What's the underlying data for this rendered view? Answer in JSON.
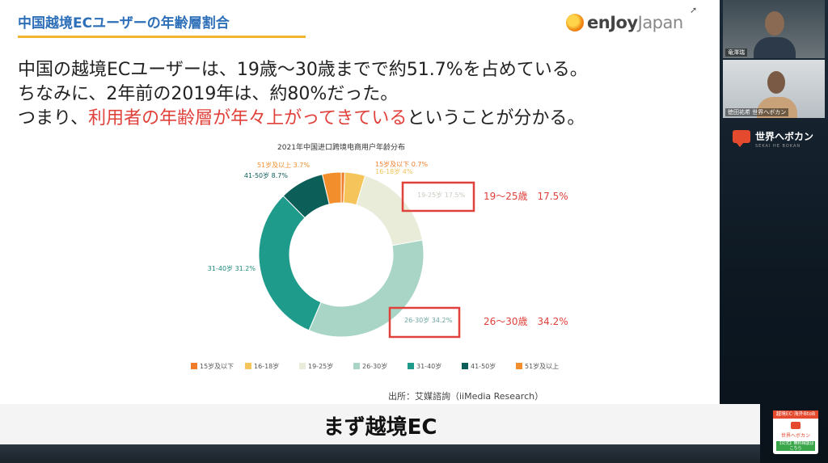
{
  "slide": {
    "title": "中国越境ECユーザーの年齢層割合",
    "logo": {
      "brand_en": "enJoy",
      "brand_jp": "Japan"
    },
    "line1": "中国の越境ECユーザーは、19歳～30歳までで約51.7%を占めている。",
    "line2": "ちなみに、2年前の2019年は、約80%だった。",
    "line3_pre": "つまり、",
    "line3_red": "利用者の年齢層が年々上がってきている",
    "line3_post": "ということが分かる。",
    "source": "出所：艾媒諮詢（iiMedia Research）"
  },
  "chart_data": {
    "type": "pie",
    "title": "2021年中国进口跨境电商用户年龄分布",
    "categories": [
      "15岁及以下",
      "16-18岁",
      "19-25岁",
      "26-30岁",
      "31-40岁",
      "41-50岁",
      "51岁及以上"
    ],
    "values": [
      0.7,
      4.0,
      17.5,
      34.2,
      31.2,
      8.7,
      3.7
    ],
    "colors": [
      "#f07d2a",
      "#f5c45a",
      "#e8ecd8",
      "#a8d5c6",
      "#1e9b8a",
      "#0c5e59",
      "#f28f2c"
    ],
    "slice_labels": [
      "15岁及以下 0.7%",
      "16-18岁 4%",
      "19-25岁 17.5%",
      "26-30岁 34.2%",
      "31-40岁 31.2%",
      "41-50岁 8.7%",
      "51岁及以上 3.7%"
    ],
    "donut": true,
    "legend": "bottom",
    "annotations": [
      {
        "text": "19～25歳　17.5%",
        "target": "19-25岁"
      },
      {
        "text": "26～30歳　34.2%",
        "target": "26-30岁"
      }
    ]
  },
  "participants": [
    {
      "name": "竜澤瑞"
    },
    {
      "name": "徳田祐希 世界へボカン"
    }
  ],
  "brand": {
    "name": "世界へボカン",
    "sub": "SEKAI HE BOKAN"
  },
  "badge": {
    "top": "越境EC·海外BtoB",
    "mid": "世界へボカン",
    "btn": "【公式】無料相談はこちら"
  },
  "subtitle": "まず越境EC"
}
